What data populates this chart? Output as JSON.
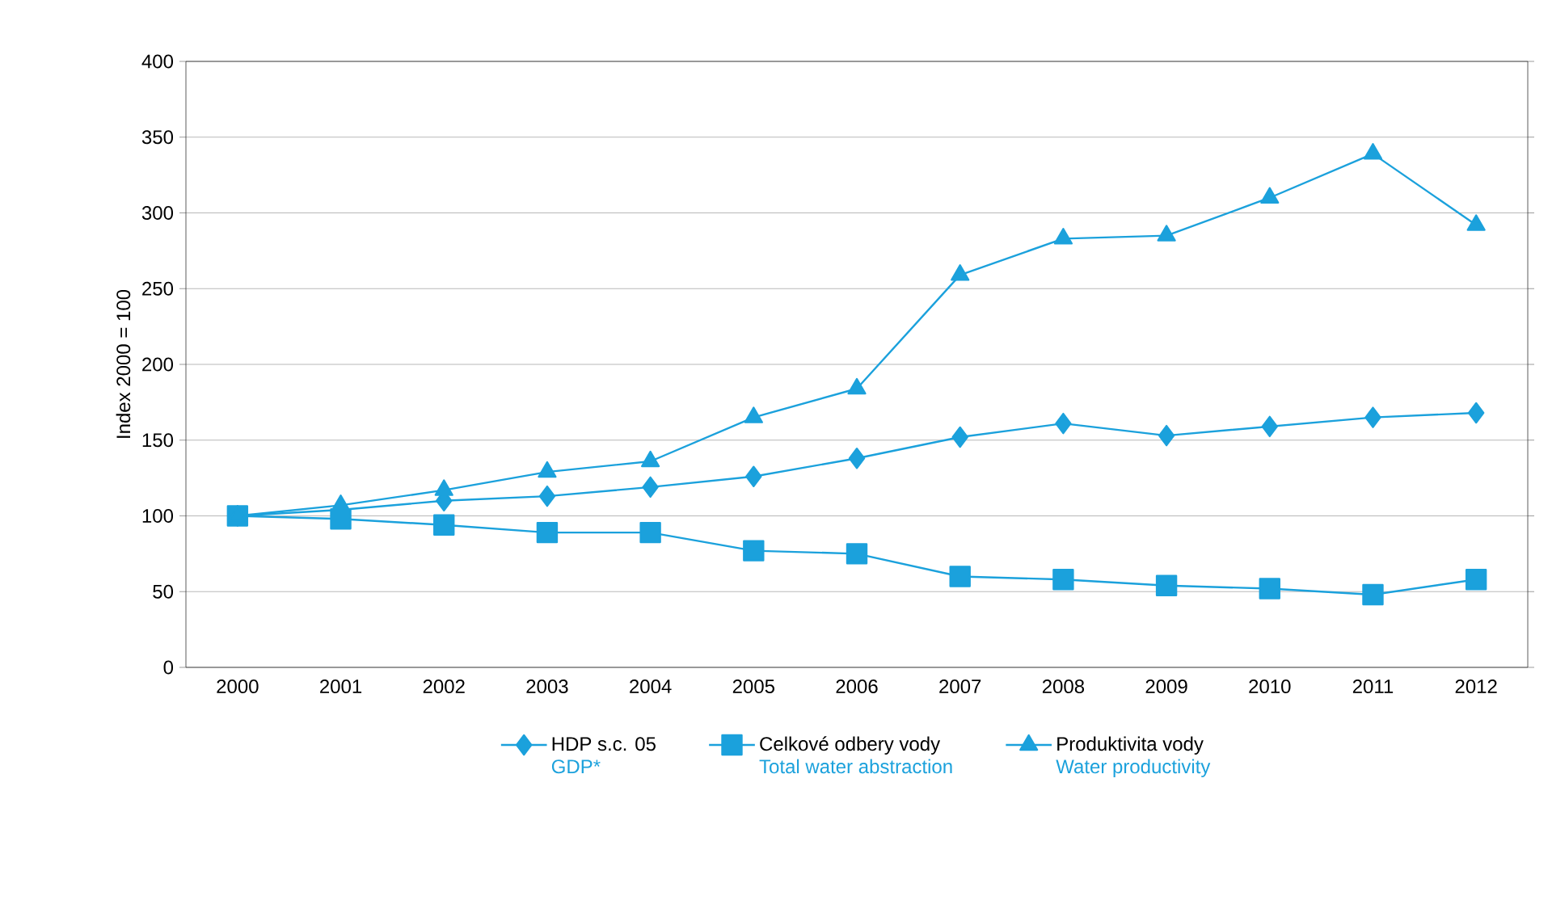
{
  "chart_data": {
    "type": "line",
    "ylabel": "Index 2000 = 100",
    "categories": [
      "2000",
      "2001",
      "2002",
      "2003",
      "2004",
      "2005",
      "2006",
      "2007",
      "2008",
      "2009",
      "2010",
      "2011",
      "2012"
    ],
    "series": [
      {
        "name": "HDP s.c. 05",
        "color": "#1ba1dc",
        "marker": "diamond",
        "values": [
          100,
          104,
          110,
          113,
          119,
          126,
          138,
          152,
          161,
          153,
          159,
          165,
          168
        ]
      },
      {
        "name": "Celkové odbery vody",
        "color": "#1ba1dc",
        "marker": "square",
        "values": [
          100,
          98,
          94,
          89,
          89,
          77,
          75,
          60,
          58,
          54,
          52,
          48,
          58
        ]
      },
      {
        "name": "Produktivita vody",
        "color": "#1ba1dc",
        "marker": "triangle",
        "values": [
          100,
          107,
          117,
          129,
          136,
          165,
          184,
          259,
          283,
          285,
          310,
          339,
          292
        ]
      }
    ],
    "annotations": [
      "GDP*",
      "Total water abstraction",
      "Water productivity"
    ],
    "ylim": [
      0,
      400
    ],
    "yticks": [
      0,
      50,
      100,
      150,
      200,
      250,
      300,
      350,
      400
    ],
    "grid": "y",
    "legend": "bottom",
    "line_style": "solid"
  }
}
